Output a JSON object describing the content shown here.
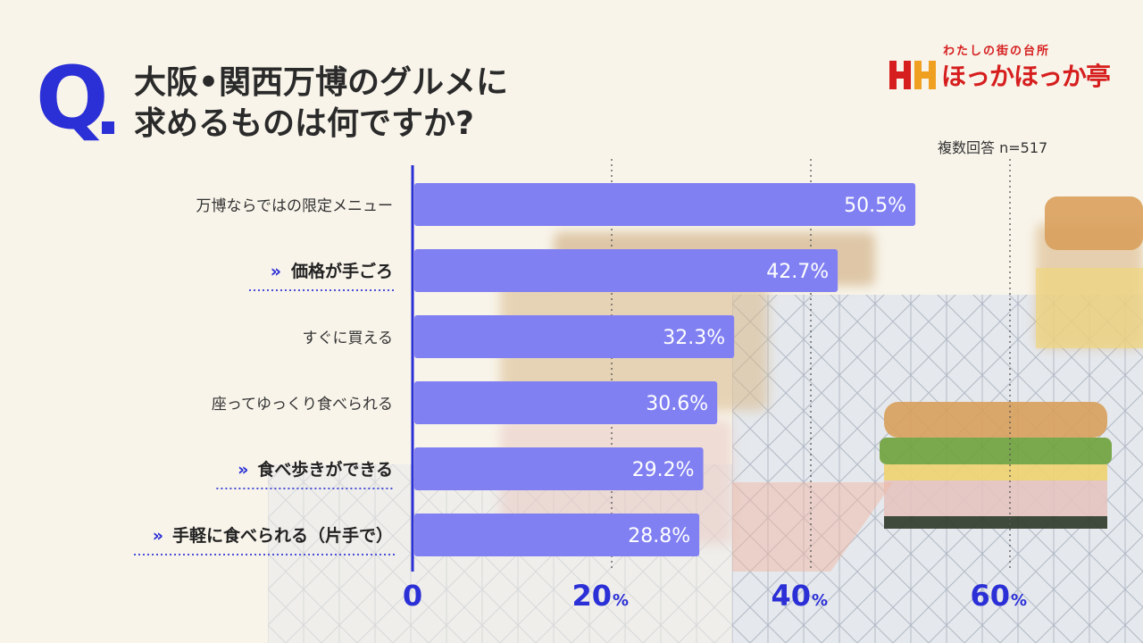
{
  "question": {
    "mark": "Q",
    "title_line1": "大阪•関西万博のグルメに",
    "title_line2": "求めるものは何ですか?"
  },
  "logo": {
    "tagline": "わたしの街の台所",
    "name": "ほっかほっか亭"
  },
  "note": "複数回答 n=517",
  "colors": {
    "bar": "#8180f2",
    "accent": "#2b2fd6",
    "logo_red": "#d61e1e"
  },
  "chart_data": {
    "type": "bar",
    "orientation": "horizontal",
    "categories": [
      "万博ならではの限定メニュー",
      "価格が手ごろ",
      "すぐに買える",
      "座ってゆっくり食べられる",
      "食べ歩きができる",
      "手軽に食べられる（片手で）"
    ],
    "highlighted": [
      false,
      true,
      false,
      false,
      true,
      true
    ],
    "values": [
      50.5,
      42.7,
      32.3,
      30.6,
      29.2,
      28.8
    ],
    "value_labels": [
      "50.5%",
      "42.7%",
      "32.3%",
      "30.6%",
      "29.2%",
      "28.8%"
    ],
    "xlim": [
      0,
      60
    ],
    "ticks": [
      {
        "value": 0,
        "label": "0",
        "unit": ""
      },
      {
        "value": 20,
        "label": "20",
        "unit": "%"
      },
      {
        "value": 40,
        "label": "40",
        "unit": "%"
      },
      {
        "value": 60,
        "label": "60",
        "unit": "%"
      }
    ],
    "grid": true
  }
}
